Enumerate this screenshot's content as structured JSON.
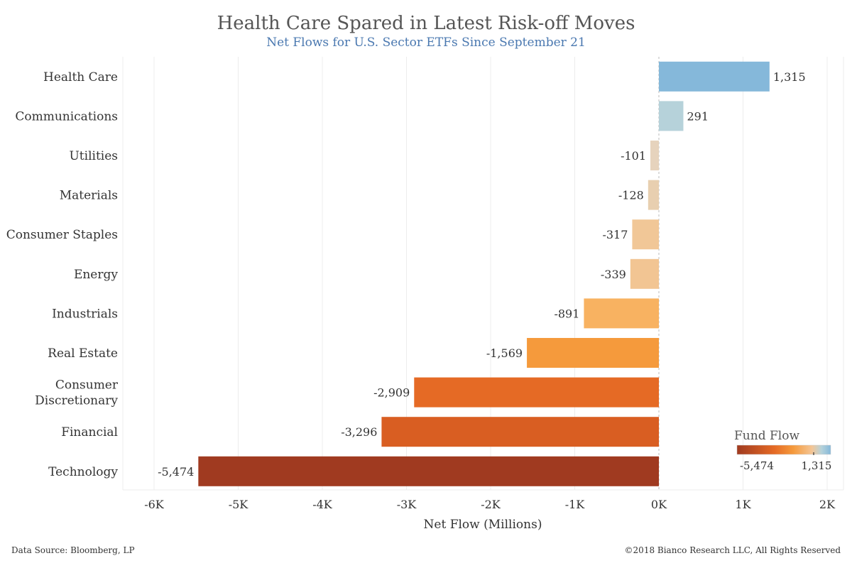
{
  "header": {
    "title": "Health Care Spared in Latest Risk-off Moves",
    "subtitle": "Net Flows for U.S. Sector ETFs Since September 21"
  },
  "footer": {
    "source": "Data Source: Bloomberg, LP",
    "copyright": "©2018 Bianco Research LLC, All Rights Reserved"
  },
  "legend": {
    "title": "Fund Flow",
    "min_label": "-5,474",
    "max_label": "1,315",
    "placement": "bottom-right"
  },
  "chart_data": {
    "type": "bar",
    "orientation": "horizontal",
    "title": "Health Care Spared in Latest Risk-off Moves",
    "subtitle": "Net Flows for U.S. Sector ETFs Since September 21",
    "xlabel": "Net Flow (Millions)",
    "ylabel": "",
    "xlim": [
      -6400,
      2150
    ],
    "xticks": [
      -6000,
      -5000,
      -4000,
      -3000,
      -2000,
      -1000,
      0,
      1000,
      2000
    ],
    "xtick_labels": [
      "-6K",
      "-5K",
      "-4K",
      "-3K",
      "-2K",
      "-1K",
      "0K",
      "1K",
      "2K"
    ],
    "grid": "vertical",
    "categories": [
      [
        "Health Care"
      ],
      [
        "Communications"
      ],
      [
        "Utilities"
      ],
      [
        "Materials"
      ],
      [
        "Consumer Staples"
      ],
      [
        "Energy"
      ],
      [
        "Industrials"
      ],
      [
        "Real Estate"
      ],
      [
        "Consumer",
        "Discretionary"
      ],
      [
        "Financial"
      ],
      [
        "Technology"
      ]
    ],
    "values": [
      1315,
      291,
      -101,
      -128,
      -317,
      -339,
      -891,
      -1569,
      -2909,
      -3296,
      -5474
    ],
    "value_labels": [
      "1,315",
      "291",
      "-101",
      "-128",
      "-317",
      "-339",
      "-891",
      "-1,569",
      "-2,909",
      "-3,296",
      "-5,474"
    ],
    "colors": [
      "#85b8da",
      "#b6d2da",
      "#e6d3bd",
      "#e8cfb0",
      "#f1c797",
      "#f2c593",
      "#f8b261",
      "#f59a3c",
      "#e56a25",
      "#d95e22",
      "#a03a20"
    ],
    "color_scale": [
      "#a03a20",
      "#e56a25",
      "#f59a3c",
      "#f4c595",
      "#b6d2da",
      "#85b8da"
    ]
  }
}
